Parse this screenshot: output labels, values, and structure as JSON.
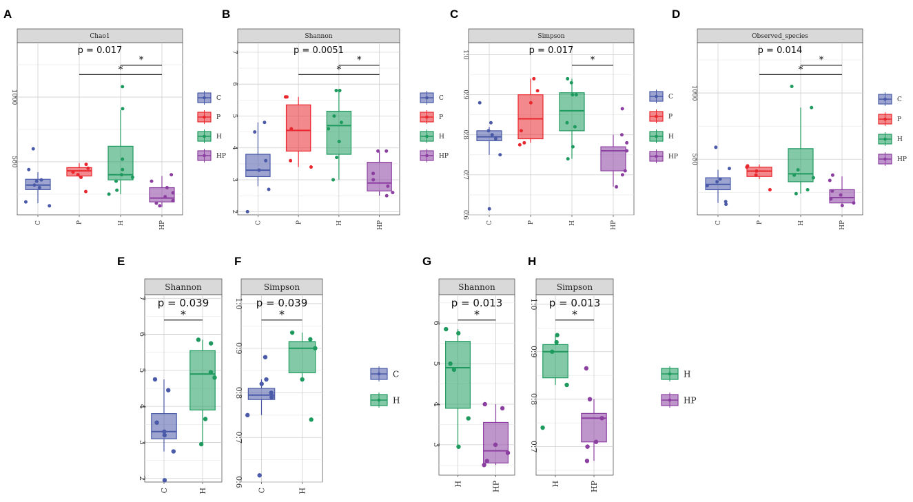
{
  "colors": {
    "C": "#4a5aa8",
    "P": "#e8282e",
    "H": "#1e9a5e",
    "HP": "#8b3fa0"
  },
  "chart_data": [
    {
      "id": "A",
      "type": "box",
      "title": "Chao1",
      "ylim": [
        90,
        1420
      ],
      "yticks": [
        500,
        1000
      ],
      "groups": [
        {
          "name": "C",
          "q1": 285,
          "median": 320,
          "q3": 365,
          "lower": 180,
          "upper": 420,
          "points": [
            160,
            190,
            300,
            320,
            350,
            360,
            440,
            600
          ]
        },
        {
          "name": "P",
          "q1": 390,
          "median": 430,
          "q3": 455,
          "lower": 380,
          "upper": 490,
          "points": [
            270,
            380,
            400,
            420,
            450,
            480
          ]
        },
        {
          "name": "H",
          "q1": 360,
          "median": 400,
          "q3": 620,
          "lower": 250,
          "upper": 900,
          "points": [
            250,
            280,
            350,
            380,
            400,
            440,
            520,
            910,
            1080
          ]
        },
        {
          "name": "HP",
          "q1": 190,
          "median": 220,
          "q3": 300,
          "lower": 150,
          "upper": 390,
          "points": [
            160,
            180,
            200,
            230,
            260,
            300,
            350,
            400
          ]
        }
      ],
      "pvalue": "p = 0.017",
      "brackets": [
        {
          "from": "P",
          "to": "HP",
          "label": "*",
          "level": 1
        },
        {
          "from": "H",
          "to": "HP",
          "label": "*",
          "level": 2
        }
      ]
    },
    {
      "id": "B",
      "type": "box",
      "title": "Shannon",
      "ylim": [
        1.9,
        7.3
      ],
      "yticks": [
        2,
        3,
        4,
        5,
        6,
        7
      ],
      "groups": [
        {
          "name": "C",
          "q1": 3.1,
          "median": 3.3,
          "q3": 3.8,
          "lower": 2.8,
          "upper": 4.8,
          "points": [
            2.0,
            2.7,
            3.3,
            3.6,
            4.5,
            4.8
          ]
        },
        {
          "name": "P",
          "q1": 3.9,
          "median": 4.55,
          "q3": 5.35,
          "lower": 3.4,
          "upper": 5.6,
          "points": [
            3.4,
            3.6,
            4.6,
            5.6,
            5.6
          ]
        },
        {
          "name": "H",
          "q1": 3.8,
          "median": 4.7,
          "q3": 5.15,
          "lower": 3.0,
          "upper": 5.8,
          "points": [
            3.0,
            3.7,
            4.2,
            4.6,
            4.8,
            5.0,
            5.8,
            5.8
          ]
        },
        {
          "name": "HP",
          "q1": 2.65,
          "median": 2.9,
          "q3": 3.55,
          "lower": 2.5,
          "upper": 3.9,
          "points": [
            2.5,
            2.6,
            2.8,
            3.0,
            3.2,
            3.9,
            3.9
          ]
        }
      ],
      "pvalue": "p = 0.0051",
      "brackets": [
        {
          "from": "P",
          "to": "HP",
          "label": "*",
          "level": 1
        },
        {
          "from": "H",
          "to": "HP",
          "label": "*",
          "level": 2
        }
      ]
    },
    {
      "id": "C",
      "type": "box",
      "title": "Simpson",
      "ylim": [
        0.6,
        1.03
      ],
      "yticks": [
        0.6,
        0.7,
        0.8,
        0.9,
        1.0
      ],
      "groups": [
        {
          "name": "C",
          "q1": 0.785,
          "median": 0.795,
          "q3": 0.81,
          "lower": 0.75,
          "upper": 0.82,
          "points": [
            0.615,
            0.75,
            0.79,
            0.8,
            0.81,
            0.83,
            0.88
          ]
        },
        {
          "name": "P",
          "q1": 0.79,
          "median": 0.84,
          "q3": 0.9,
          "lower": 0.78,
          "upper": 0.94,
          "points": [
            0.775,
            0.78,
            0.81,
            0.88,
            0.91,
            0.94
          ]
        },
        {
          "name": "H",
          "q1": 0.81,
          "median": 0.86,
          "q3": 0.905,
          "lower": 0.74,
          "upper": 0.94,
          "points": [
            0.74,
            0.77,
            0.82,
            0.83,
            0.9,
            0.9,
            0.93,
            0.94
          ]
        },
        {
          "name": "HP",
          "q1": 0.71,
          "median": 0.76,
          "q3": 0.77,
          "lower": 0.67,
          "upper": 0.8,
          "points": [
            0.67,
            0.7,
            0.71,
            0.76,
            0.78,
            0.8,
            0.865
          ]
        }
      ],
      "pvalue": "p = 0.017",
      "brackets": [
        {
          "from": "H",
          "to": "HP",
          "label": "*",
          "level": 1
        }
      ]
    },
    {
      "id": "D",
      "type": "box",
      "title": "Observed_species",
      "ylim": [
        80,
        1380
      ],
      "yticks": [
        500,
        1000
      ],
      "groups": [
        {
          "name": "C",
          "q1": 270,
          "median": 310,
          "q3": 360,
          "lower": 170,
          "upper": 420,
          "points": [
            160,
            180,
            300,
            330,
            350,
            430,
            590
          ]
        },
        {
          "name": "P",
          "q1": 370,
          "median": 410,
          "q3": 440,
          "lower": 350,
          "upper": 460,
          "points": [
            270,
            380,
            410,
            440,
            450
          ]
        },
        {
          "name": "H",
          "q1": 330,
          "median": 390,
          "q3": 580,
          "lower": 240,
          "upper": 890,
          "points": [
            240,
            270,
            360,
            380,
            420,
            890,
            1050
          ]
        },
        {
          "name": "HP",
          "q1": 170,
          "median": 210,
          "q3": 270,
          "lower": 150,
          "upper": 370,
          "points": [
            150,
            170,
            200,
            230,
            260,
            340,
            380
          ]
        }
      ],
      "pvalue": "p = 0.014",
      "brackets": [
        {
          "from": "P",
          "to": "HP",
          "label": "*",
          "level": 1
        },
        {
          "from": "H",
          "to": "HP",
          "label": "*",
          "level": 2
        }
      ]
    },
    {
      "id": "E",
      "type": "box",
      "title": "Shannon",
      "ylim": [
        1.9,
        7.1
      ],
      "yticks": [
        2,
        3,
        4,
        5,
        6,
        7
      ],
      "groups": [
        {
          "name": "C",
          "q1": 3.1,
          "median": 3.3,
          "q3": 3.8,
          "lower": 2.75,
          "upper": 4.75,
          "points": [
            1.95,
            2.75,
            3.2,
            3.3,
            3.55,
            4.45,
            4.75
          ]
        },
        {
          "name": "H",
          "q1": 3.9,
          "median": 4.9,
          "q3": 5.55,
          "lower": 2.95,
          "upper": 5.85,
          "points": [
            2.95,
            3.65,
            4.8,
            4.95,
            5.75,
            5.85
          ]
        }
      ],
      "pvalue": "p = 0.039",
      "brackets": [
        {
          "from": "C",
          "to": "H",
          "label": "*",
          "level": 1
        }
      ]
    },
    {
      "id": "F",
      "type": "box",
      "title": "Simpson",
      "ylim": [
        0.6,
        1.02
      ],
      "yticks": [
        0.6,
        0.7,
        0.8,
        0.9,
        1.0
      ],
      "groups": [
        {
          "name": "C",
          "q1": 0.785,
          "median": 0.795,
          "q3": 0.81,
          "lower": 0.75,
          "upper": 0.83,
          "points": [
            0.615,
            0.75,
            0.79,
            0.8,
            0.82,
            0.83,
            0.88
          ]
        },
        {
          "name": "H",
          "q1": 0.845,
          "median": 0.9,
          "q3": 0.915,
          "lower": 0.83,
          "upper": 0.935,
          "points": [
            0.74,
            0.83,
            0.9,
            0.92,
            0.935
          ]
        }
      ],
      "pvalue": "p = 0.039",
      "brackets": [
        {
          "from": "C",
          "to": "H",
          "label": "*",
          "level": 1
        }
      ]
    },
    {
      "id": "G",
      "type": "box",
      "title": "Shannon",
      "ylim": [
        2.25,
        6.7
      ],
      "yticks": [
        3,
        4,
        5,
        6
      ],
      "groups": [
        {
          "name": "H",
          "q1": 3.9,
          "median": 4.9,
          "q3": 5.55,
          "lower": 2.95,
          "upper": 5.85,
          "points": [
            2.95,
            3.65,
            4.85,
            5.0,
            5.75,
            5.85
          ]
        },
        {
          "name": "HP",
          "q1": 2.55,
          "median": 2.85,
          "q3": 3.55,
          "lower": 2.5,
          "upper": 4.0,
          "points": [
            2.5,
            2.6,
            2.8,
            3.0,
            3.9,
            4.0
          ]
        }
      ],
      "pvalue": "p = 0.013",
      "brackets": [
        {
          "from": "H",
          "to": "HP",
          "label": "*",
          "level": 1
        }
      ]
    },
    {
      "id": "H",
      "type": "box",
      "title": "Simpson",
      "ylim": [
        0.64,
        1.02
      ],
      "yticks": [
        0.7,
        0.8,
        0.9,
        1.0
      ],
      "groups": [
        {
          "name": "H",
          "q1": 0.845,
          "median": 0.9,
          "q3": 0.915,
          "lower": 0.83,
          "upper": 0.935,
          "points": [
            0.74,
            0.83,
            0.9,
            0.92,
            0.935
          ]
        },
        {
          "name": "HP",
          "q1": 0.71,
          "median": 0.76,
          "q3": 0.77,
          "lower": 0.67,
          "upper": 0.8,
          "points": [
            0.67,
            0.7,
            0.71,
            0.76,
            0.8,
            0.865
          ]
        }
      ],
      "pvalue": "p = 0.013",
      "brackets": [
        {
          "from": "H",
          "to": "HP",
          "label": "*",
          "level": 1
        }
      ]
    }
  ],
  "legends": [
    {
      "id": "legend-top-1",
      "items": [
        "C",
        "P",
        "H",
        "HP"
      ]
    },
    {
      "id": "legend-top-2",
      "items": [
        "C",
        "P",
        "H",
        "HP"
      ]
    },
    {
      "id": "legend-top-3",
      "items": [
        "C",
        "P",
        "H",
        "HP"
      ]
    },
    {
      "id": "legend-top-4",
      "items": [
        "C",
        "P",
        "H",
        "HP"
      ]
    },
    {
      "id": "legend-bottom-1",
      "items": [
        "C",
        "H"
      ]
    },
    {
      "id": "legend-bottom-2",
      "items": [
        "H",
        "HP"
      ]
    }
  ]
}
